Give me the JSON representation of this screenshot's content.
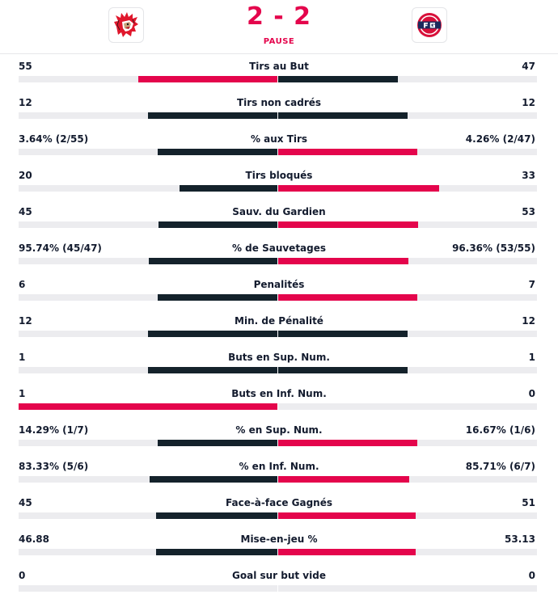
{
  "header": {
    "home_team_logo": "lion-head-logo",
    "away_team_logo": "fg-logo",
    "score": "2 - 2",
    "status": "PAUSE"
  },
  "colors": {
    "accent": "#e4054c",
    "dark": "#14222b",
    "track": "#ececef"
  },
  "stats": [
    {
      "label": "Tirs au But",
      "home": "55",
      "away": "47",
      "home_pct": 53.9,
      "away_pct": 46.1,
      "home_color": "accent",
      "away_color": "dark"
    },
    {
      "label": "Tirs non cadrés",
      "home": "12",
      "away": "12",
      "home_pct": 50,
      "away_pct": 50,
      "home_color": "dark",
      "away_color": "dark"
    },
    {
      "label": "% aux Tirs",
      "home": "3.64% (2/55)",
      "away": "4.26% (2/47)",
      "home_pct": 46.1,
      "away_pct": 53.9,
      "home_color": "dark",
      "away_color": "accent"
    },
    {
      "label": "Tirs bloqués",
      "home": "20",
      "away": "33",
      "home_pct": 37.7,
      "away_pct": 62.3,
      "home_color": "dark",
      "away_color": "accent"
    },
    {
      "label": "Sauv. du Gardien",
      "home": "45",
      "away": "53",
      "home_pct": 45.9,
      "away_pct": 54.1,
      "home_color": "dark",
      "away_color": "accent"
    },
    {
      "label": "% de Sauvetages",
      "home": "95.74% (45/47)",
      "away": "96.36% (53/55)",
      "home_pct": 49.8,
      "away_pct": 50.2,
      "home_color": "dark",
      "away_color": "accent"
    },
    {
      "label": "Penalités",
      "home": "6",
      "away": "7",
      "home_pct": 46.2,
      "away_pct": 53.8,
      "home_color": "dark",
      "away_color": "accent"
    },
    {
      "label": "Min. de Pénalité",
      "home": "12",
      "away": "12",
      "home_pct": 50,
      "away_pct": 50,
      "home_color": "dark",
      "away_color": "dark"
    },
    {
      "label": "Buts en Sup. Num.",
      "home": "1",
      "away": "1",
      "home_pct": 50,
      "away_pct": 50,
      "home_color": "dark",
      "away_color": "dark"
    },
    {
      "label": "Buts en Inf. Num.",
      "home": "1",
      "away": "0",
      "home_pct": 100,
      "away_pct": 0,
      "home_color": "accent",
      "away_color": "dark"
    },
    {
      "label": "% en Sup. Num.",
      "home": "14.29% (1/7)",
      "away": "16.67% (1/6)",
      "home_pct": 46.2,
      "away_pct": 53.8,
      "home_color": "dark",
      "away_color": "accent"
    },
    {
      "label": "% en Inf. Num.",
      "home": "83.33% (5/6)",
      "away": "85.71% (6/7)",
      "home_pct": 49.3,
      "away_pct": 50.7,
      "home_color": "dark",
      "away_color": "accent"
    },
    {
      "label": "Face-à-face Gagnés",
      "home": "45",
      "away": "51",
      "home_pct": 46.9,
      "away_pct": 53.1,
      "home_color": "dark",
      "away_color": "accent"
    },
    {
      "label": "Mise-en-jeu %",
      "home": "46.88",
      "away": "53.13",
      "home_pct": 46.9,
      "away_pct": 53.1,
      "home_color": "dark",
      "away_color": "accent"
    },
    {
      "label": "Goal sur but vide",
      "home": "0",
      "away": "0",
      "home_pct": 0,
      "away_pct": 0,
      "home_color": "dark",
      "away_color": "dark"
    }
  ]
}
